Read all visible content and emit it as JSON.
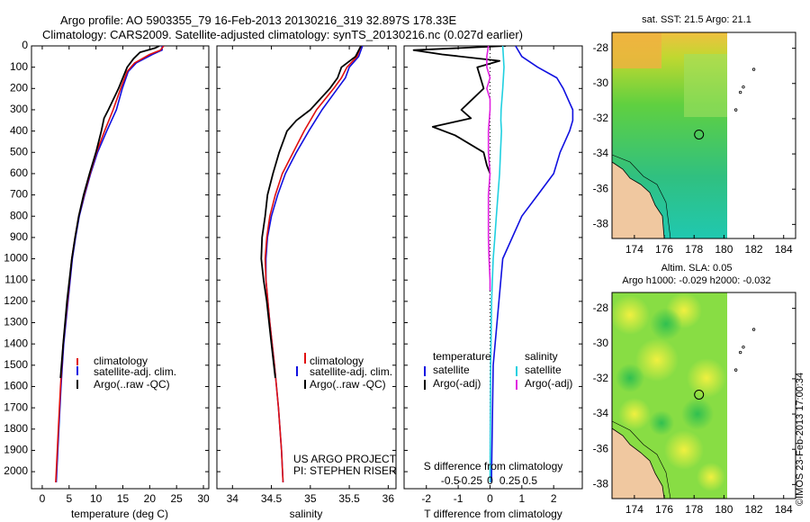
{
  "header": {
    "line1": "Argo profile: AO 5903355_79 16-Feb-2013 20130216_319 32.897S 178.33E",
    "line2": "Climatology: CARS2009. Satellite-adjusted climatology: synTS_20130216.nc (0.027d earlier)"
  },
  "colors": {
    "clim": "#e01010",
    "sat": "#1010e0",
    "argo": "#000000",
    "sal_sat": "#20d0e0",
    "sal_argo": "#e020e0"
  },
  "chart_data": [
    {
      "type": "line",
      "name": "temperature",
      "xlabel": "temperature (deg C)",
      "ylabel": "",
      "xlim": [
        -2,
        31
      ],
      "ylim": [
        2080,
        0
      ],
      "xticks": [
        "0",
        "5",
        "10",
        "15",
        "20",
        "25",
        "30"
      ],
      "xtick_values": [
        0,
        5,
        10,
        15,
        20,
        25,
        30
      ],
      "yticks": [
        "0",
        "100",
        "200",
        "300",
        "400",
        "500",
        "600",
        "700",
        "800",
        "900",
        "1000",
        "1100",
        "1200",
        "1300",
        "1400",
        "1500",
        "1600",
        "1700",
        "1800",
        "1900",
        "2000"
      ],
      "ytick_values": [
        0,
        100,
        200,
        300,
        400,
        500,
        600,
        700,
        800,
        900,
        1000,
        1100,
        1200,
        1300,
        1400,
        1500,
        1600,
        1700,
        1800,
        1900,
        2000
      ],
      "legend": [
        "climatology",
        "satellite-adj. clim.",
        "Argo(..raw -QC)"
      ],
      "series": [
        {
          "name": "satellite-adj. clim.",
          "key": "sat",
          "depth": [
            0,
            20,
            40,
            80,
            120,
            200,
            300,
            400,
            500,
            600,
            700,
            800,
            900,
            1000,
            1200,
            1400,
            1600,
            1800,
            2000,
            2050
          ],
          "values": [
            22.3,
            22.3,
            20.5,
            17.5,
            16.0,
            14.9,
            13.8,
            12.0,
            10.3,
            9.0,
            7.9,
            6.9,
            6.2,
            5.6,
            4.8,
            4.0,
            3.5,
            3.1,
            2.7,
            2.6
          ]
        },
        {
          "name": "climatology",
          "key": "clim",
          "depth": [
            0,
            20,
            40,
            80,
            120,
            200,
            300,
            400,
            500,
            600,
            700,
            800,
            900,
            1000,
            1200,
            1400,
            1600,
            1800,
            2000,
            2050
          ],
          "values": [
            22.6,
            22.0,
            20.0,
            17.2,
            15.8,
            14.6,
            13.2,
            11.6,
            10.1,
            8.9,
            7.8,
            6.8,
            6.1,
            5.5,
            4.7,
            3.9,
            3.4,
            3.0,
            2.6,
            2.5
          ]
        },
        {
          "name": "Argo(..raw -QC)",
          "key": "argo",
          "depth": [
            0,
            10,
            30,
            60,
            100,
            150,
            200,
            300,
            340,
            400,
            500,
            600,
            700,
            800,
            900,
            1000,
            1200,
            1400,
            1560
          ],
          "values": [
            21.8,
            21.0,
            18.2,
            17.0,
            15.8,
            15.0,
            14.2,
            12.3,
            11.5,
            11.0,
            10.0,
            8.8,
            7.7,
            6.8,
            6.1,
            5.5,
            4.6,
            3.9,
            3.4
          ]
        }
      ]
    },
    {
      "type": "line",
      "name": "salinity",
      "xlabel": "salinity",
      "xlim": [
        33.8,
        36.1
      ],
      "ylim": [
        2080,
        0
      ],
      "xticks": [
        "34",
        "34.5",
        "35",
        "35.5",
        "36"
      ],
      "xtick_values": [
        34,
        34.5,
        35,
        35.5,
        36
      ],
      "legend": [
        "climatology",
        "satellite-adj. clim.",
        "Argo(..raw -QC)"
      ],
      "series": [
        {
          "name": "satellite-adj. clim.",
          "key": "sat",
          "depth": [
            0,
            50,
            100,
            150,
            200,
            300,
            400,
            500,
            600,
            700,
            800,
            900,
            1000,
            1100,
            1300,
            1500,
            1700,
            1900,
            2050
          ],
          "values": [
            35.67,
            35.62,
            35.5,
            35.45,
            35.35,
            35.15,
            34.98,
            34.82,
            34.68,
            34.58,
            34.5,
            34.45,
            34.43,
            34.43,
            34.48,
            34.54,
            34.59,
            34.63,
            34.65
          ]
        },
        {
          "name": "climatology",
          "key": "clim",
          "depth": [
            0,
            50,
            100,
            150,
            200,
            300,
            400,
            500,
            600,
            700,
            800,
            900,
            1000,
            1100,
            1300,
            1500,
            1700,
            1900,
            2050
          ],
          "values": [
            35.65,
            35.6,
            35.47,
            35.4,
            35.3,
            35.08,
            34.92,
            34.78,
            34.64,
            34.55,
            34.48,
            34.44,
            34.42,
            34.43,
            34.48,
            34.54,
            34.59,
            34.63,
            34.65
          ]
        },
        {
          "name": "Argo(..raw -QC)",
          "key": "argo",
          "depth": [
            0,
            50,
            100,
            150,
            200,
            300,
            350,
            400,
            500,
            600,
            700,
            800,
            900,
            1000,
            1100,
            1200,
            1400,
            1560
          ],
          "values": [
            35.65,
            35.58,
            35.4,
            35.35,
            35.25,
            35.0,
            34.82,
            34.7,
            34.6,
            34.52,
            34.45,
            34.42,
            34.38,
            34.37,
            34.4,
            34.44,
            34.5,
            34.55
          ]
        }
      ]
    },
    {
      "type": "line",
      "name": "difference",
      "xlabel_top": "S difference from climatology",
      "xlabel": "T difference from climatology",
      "xlim": [
        -2.7,
        2.9
      ],
      "ylim": [
        2080,
        0
      ],
      "xticks": [
        "-2",
        "-1",
        "0",
        "1",
        "2"
      ],
      "xtick_values": [
        -2,
        -1,
        0,
        1,
        2
      ],
      "s_ticks": [
        "-0.5",
        "-0.25",
        "0",
        "0.25",
        "0.5"
      ],
      "legend_titles": [
        "temperature",
        "salinity"
      ],
      "legend": [
        "satellite",
        "Argo(-adj)",
        "satellite",
        "Argo(-adj)"
      ],
      "series": [
        {
          "name": "T satellite",
          "key": "sat",
          "depth": [
            0,
            50,
            100,
            150,
            200,
            300,
            350,
            400,
            500,
            600,
            700,
            800,
            1000,
            1500,
            2000,
            2050
          ],
          "values": [
            0.8,
            1.0,
            1.5,
            2.1,
            2.3,
            2.6,
            2.6,
            2.5,
            2.2,
            2.0,
            1.5,
            1.0,
            0.4,
            0.1,
            0.05,
            0.05
          ]
        },
        {
          "name": "T Argo(-adj)",
          "key": "argo",
          "depth": [
            0,
            20,
            40,
            70,
            100,
            150,
            200,
            300,
            340,
            380,
            420,
            500,
            560,
            600
          ],
          "values": [
            0.5,
            -2.4,
            -1.5,
            0.3,
            -0.4,
            -0.3,
            -0.2,
            -0.9,
            -0.6,
            -1.8,
            -1.1,
            -0.2,
            -0.1,
            0.0
          ]
        },
        {
          "name": "S satellite",
          "key": "sal_sat",
          "depth": [
            0,
            100,
            200,
            300,
            350,
            400,
            500,
            600,
            700,
            800,
            900,
            1000,
            1200,
            1500,
            1800,
            2050
          ],
          "values": [
            0.4,
            0.44,
            0.4,
            0.35,
            0.34,
            0.36,
            0.33,
            0.3,
            0.25,
            0.2,
            0.15,
            0.1,
            0.05,
            0.02,
            0.01,
            0.0
          ]
        },
        {
          "name": "S Argo(-adj)",
          "key": "sal_argo",
          "depth": [
            0,
            50,
            100,
            150,
            200,
            250,
            300,
            400,
            500,
            600,
            700,
            800,
            900,
            1000,
            1100,
            1150
          ],
          "values": [
            -0.05,
            -0.1,
            -0.1,
            0.0,
            -0.1,
            0.0,
            0.0,
            -0.05,
            -0.05,
            0.0,
            -0.05,
            -0.05,
            -0.05,
            -0.03,
            0.0,
            0.0
          ]
        }
      ]
    }
  ],
  "notes": {
    "project": "US ARGO PROJECT",
    "pi": "PI: STEPHEN RISER"
  },
  "maps": {
    "sst_title": "sat. SST: 21.5  Argo: 21.1",
    "sla_title1": "Altim. SLA: 0.05",
    "sla_title2": "Argo h1000: -0.029  h2000: -0.032",
    "lon_ticks": [
      "174",
      "176",
      "178",
      "180",
      "182",
      "184"
    ],
    "lat_ticks": [
      "-28",
      "-30",
      "-32",
      "-34",
      "-36",
      "-38"
    ],
    "float_lon": 178.33,
    "float_lat": -32.897
  },
  "footer": {
    "stamp": "©IMOS 23-Feb-2013 17:00:34"
  }
}
